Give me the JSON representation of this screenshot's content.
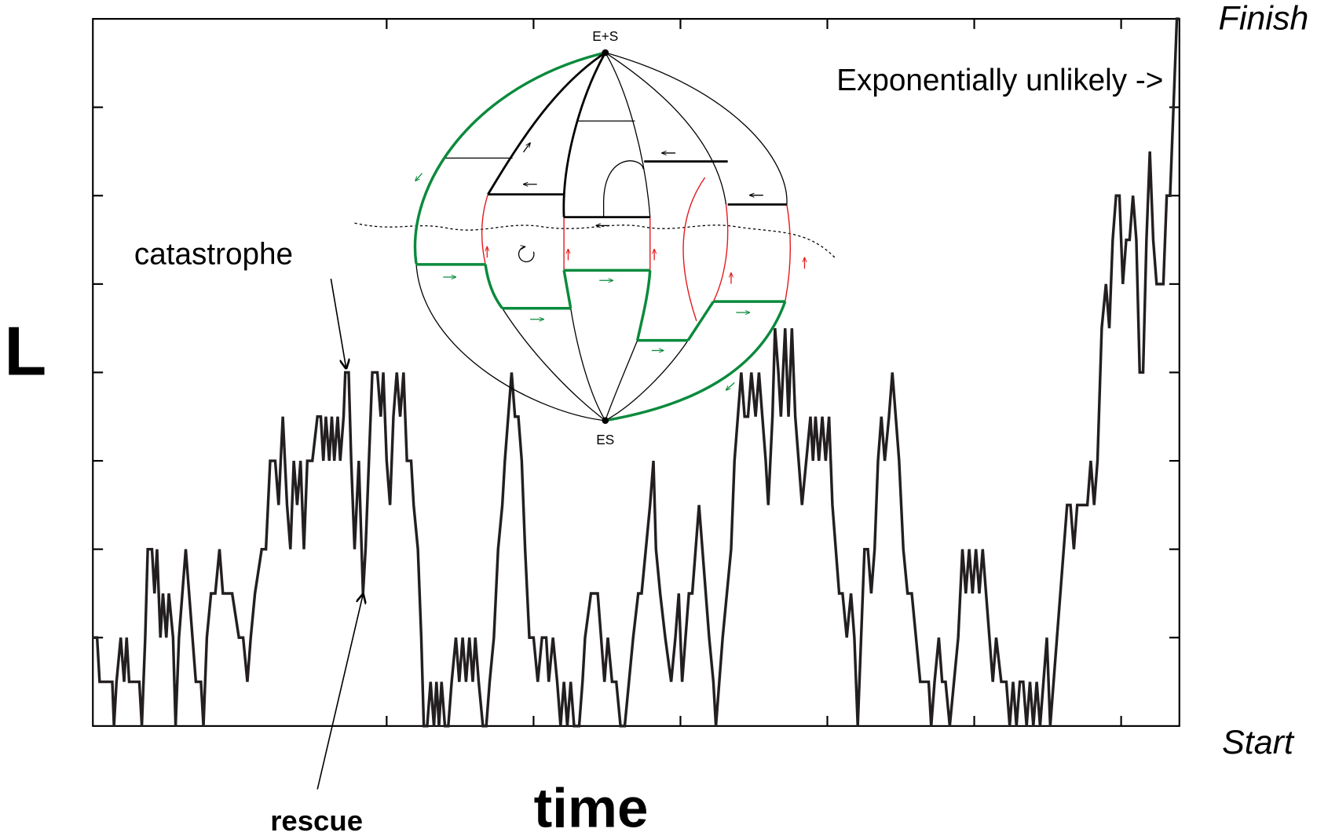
{
  "chart_data": {
    "type": "line",
    "x_label": "time",
    "y_label": "L",
    "top_label": "Finish",
    "bottom_label": "Start",
    "annotations": {
      "catastrophe": "catastrophe",
      "rescue": "rescue",
      "unlikely": "Exponentially unlikely ->"
    },
    "inset": {
      "top_node": "E+S",
      "bottom_node": "ES"
    },
    "color": "#231f20",
    "xlim": [
      0,
      1287
    ],
    "ylim": [
      0,
      8
    ],
    "xticks": [
      348,
      522,
      696,
      870,
      1044,
      1218
    ],
    "yticks": [
      1,
      2,
      3,
      4,
      5,
      6,
      7
    ],
    "x": [
      0,
      5,
      8,
      23,
      25,
      28,
      33,
      37,
      40,
      43,
      55,
      58,
      62,
      65,
      70,
      73,
      76,
      80,
      83,
      87,
      90,
      95,
      98,
      102,
      106,
      110,
      114,
      118,
      122,
      128,
      131,
      135,
      140,
      145,
      150,
      154,
      158,
      165,
      173,
      178,
      183,
      187,
      192,
      200,
      205,
      210,
      216,
      220,
      225,
      230,
      234,
      238,
      242,
      246,
      250,
      254,
      260,
      266,
      270,
      273,
      276,
      280,
      283,
      286,
      290,
      293,
      297,
      299,
      303,
      306,
      310,
      315,
      320,
      323,
      327,
      331,
      337,
      341,
      344,
      348,
      352,
      356,
      360,
      364,
      368,
      372,
      377,
      380,
      385,
      389,
      392,
      396,
      400,
      404,
      407,
      410,
      413,
      417,
      421,
      425,
      430,
      434,
      438,
      442,
      446,
      450,
      453,
      457,
      462,
      466,
      470,
      475,
      480,
      485,
      488,
      492,
      496,
      500,
      504,
      508,
      512,
      517,
      522,
      527,
      532,
      537,
      540,
      545,
      550,
      554,
      558,
      562,
      566,
      570,
      576,
      580,
      583,
      590,
      598,
      602,
      606,
      610,
      615,
      620,
      625,
      630,
      635,
      640,
      646,
      650,
      655,
      660,
      664,
      667,
      672,
      678,
      685,
      690,
      694,
      698,
      702,
      706,
      710,
      714,
      718,
      722,
      726,
      730,
      735,
      738,
      742,
      746,
      751,
      756,
      760,
      764,
      768,
      772,
      776,
      780,
      785,
      789,
      793,
      797,
      800,
      805,
      808,
      812,
      815,
      820,
      824,
      828,
      832,
      836,
      840,
      845,
      850,
      853,
      856,
      860,
      864,
      868,
      872,
      876,
      880,
      884,
      888,
      893,
      898,
      902,
      906,
      910,
      914,
      918,
      922,
      926,
      930,
      934,
      938,
      943,
      947,
      951,
      955,
      960,
      965,
      970,
      975,
      980,
      985,
      990,
      993,
      997,
      1002,
      1006,
      1010,
      1015,
      1020,
      1025,
      1030,
      1034,
      1038,
      1042,
      1046,
      1050,
      1054,
      1058,
      1062,
      1066,
      1070,
      1076,
      1082,
      1086,
      1090,
      1094,
      1098,
      1102,
      1106,
      1110,
      1114,
      1118,
      1122,
      1126,
      1130,
      1134,
      1138,
      1142,
      1146,
      1150,
      1154,
      1158,
      1162,
      1166,
      1170,
      1174,
      1178,
      1182,
      1186,
      1190,
      1195,
      1200,
      1204,
      1208,
      1212,
      1216,
      1220,
      1224,
      1228,
      1232,
      1236,
      1240,
      1244,
      1248,
      1252,
      1256,
      1260,
      1264,
      1268,
      1272,
      1276,
      1280,
      1284,
      1287
    ],
    "values": [
      1,
      1,
      0.5,
      0.5,
      0,
      0.5,
      1,
      0.5,
      1,
      0.5,
      0.5,
      0,
      1,
      2,
      2,
      1.5,
      2,
      1,
      1.5,
      1,
      1.5,
      1,
      0,
      1,
      1.5,
      2,
      1.5,
      1,
      0.5,
      0.5,
      0,
      1,
      1.5,
      1.5,
      2,
      1.5,
      1.5,
      1.5,
      1,
      1,
      0.5,
      1,
      1.5,
      2,
      2,
      3,
      3,
      2.5,
      3.5,
      2.5,
      2,
      3,
      2.5,
      3,
      2,
      3,
      3,
      3.5,
      3.5,
      3,
      3.5,
      3,
      3.5,
      3,
      3.5,
      3,
      3.5,
      4,
      4,
      3,
      2,
      3,
      1.5,
      2,
      3,
      4,
      4,
      3.5,
      4,
      3,
      2.5,
      3.5,
      4,
      3.5,
      4,
      3,
      3,
      2.5,
      2,
      1,
      0,
      0,
      0.5,
      0,
      0.5,
      0,
      0.5,
      0,
      0,
      0.5,
      1,
      0.5,
      1,
      0.5,
      1,
      0.5,
      1,
      0.5,
      0,
      0,
      0.5,
      1,
      2,
      2.5,
      3,
      3.5,
      4,
      3.5,
      3.5,
      3,
      2,
      1,
      1,
      0.5,
      1,
      1,
      0.5,
      1,
      0.5,
      0,
      0.5,
      0,
      0.5,
      0,
      0,
      0.5,
      1,
      1.5,
      1.5,
      1,
      0.5,
      1,
      0.5,
      0.5,
      0,
      0,
      0.5,
      1,
      1.5,
      1.5,
      2,
      2.5,
      3,
      2,
      1.5,
      1,
      0.5,
      1,
      1.5,
      0.5,
      1,
      1.5,
      1.5,
      2,
      2.5,
      2,
      1.5,
      1,
      0.5,
      0,
      0.5,
      1,
      1.5,
      2,
      3,
      3.5,
      4,
      3.5,
      3.5,
      4,
      3.5,
      4,
      3.5,
      3,
      2.5,
      3.5,
      4.5,
      4,
      3.5,
      4.5,
      3.5,
      4.5,
      3.5,
      3,
      2.5,
      3,
      3.5,
      3,
      3.5,
      3,
      3.5,
      3,
      3.5,
      2.5,
      2,
      1.5,
      1.5,
      1,
      1.5,
      1,
      0,
      1,
      2,
      2,
      1.5,
      2,
      3,
      3.5,
      3,
      3.5,
      4,
      3.5,
      3,
      2,
      1.5,
      1.5,
      1,
      0.5,
      0.5,
      0.5,
      0,
      0.5,
      1,
      0.5,
      0.5,
      0,
      0.5,
      1,
      2,
      1.5,
      2,
      1.5,
      2,
      1.5,
      2,
      1.5,
      1,
      0.5,
      1,
      0.5,
      0.5,
      0,
      0.5,
      0,
      0.5,
      0.5,
      0,
      0.5,
      0,
      0.5,
      0,
      0.5,
      1,
      0,
      0.5,
      1,
      1.5,
      2,
      2.5,
      2.5,
      2,
      2.5,
      2.5,
      2.5,
      2.5,
      3,
      2.5,
      3,
      4.5,
      5,
      4.5,
      5.5,
      6,
      6,
      5,
      5.5,
      5.5,
      6,
      5.5,
      4,
      4,
      5.5,
      6.5,
      5.5,
      5,
      5,
      5,
      6,
      6,
      7,
      8,
      8
    ]
  }
}
